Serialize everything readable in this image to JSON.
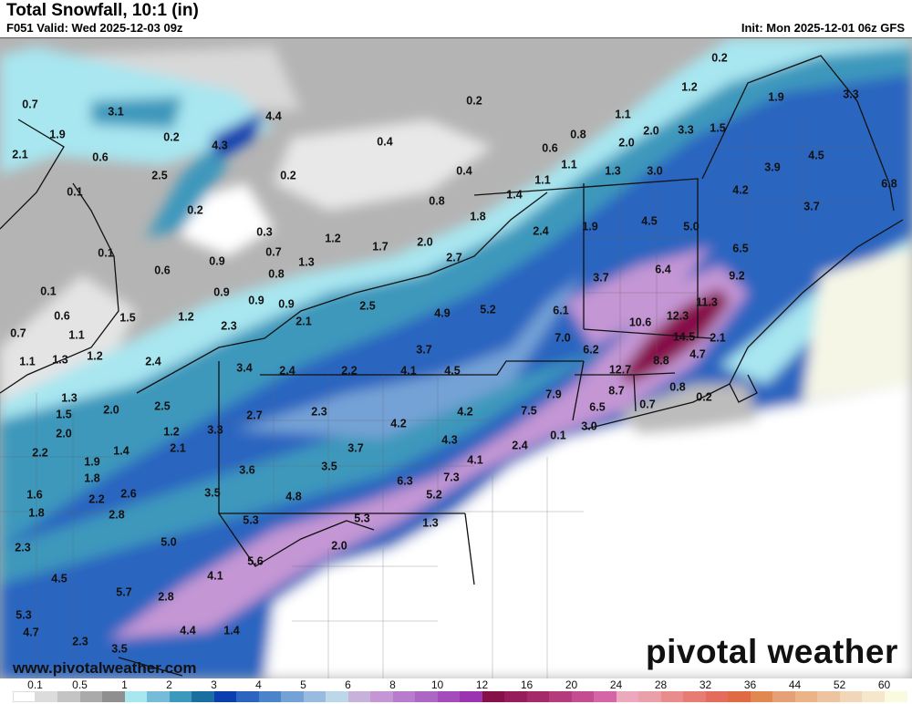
{
  "header": {
    "title": "Total Snowfall, 10:1 (in)",
    "valid": "F051 Valid: Wed 2025-12-03 09z",
    "init": "Init: Mon 2025-12-01 06z GFS"
  },
  "map": {
    "labels": [
      "0.2",
      "1.2",
      "1.9",
      "3.3",
      "0.7",
      "3.1",
      "4.4",
      "0.2",
      "1.1",
      "2.0",
      "3.3",
      "1.5",
      "0.8",
      "1.9",
      "0.2",
      "4.3",
      "0.4",
      "2.0",
      "4.5",
      "2.1",
      "0.6",
      "0.6",
      "1.1",
      "1.3",
      "3.0",
      "3.9",
      "0.4",
      "2.5",
      "0.2",
      "1.1",
      "4.2",
      "6.8",
      "0.1",
      "0.8",
      "1.4",
      "0.2",
      "3.7",
      "1.8",
      "1.9",
      "4.5",
      "5.0",
      "0.3",
      "2.4",
      "1.2",
      "1.7",
      "2.0",
      "0.1",
      "0.7",
      "2.7",
      "6.5",
      "0.9",
      "1.3",
      "0.6",
      "0.8",
      "6.4",
      "9.2",
      "0.1",
      "0.9",
      "0.9",
      "0.9",
      "3.7",
      "2.5",
      "11.3",
      "0.6",
      "1.5",
      "1.2",
      "2.3",
      "2.1",
      "4.9",
      "5.2",
      "6.1",
      "12.3",
      "10.6",
      "1.1",
      "0.7",
      "7.0",
      "14.5",
      "2.1",
      "3.7",
      "6.2",
      "4.7",
      "1.1",
      "1.3",
      "1.2",
      "2.4",
      "8.8",
      "3.4",
      "2.4",
      "2.2",
      "4.1",
      "4.5",
      "12.7",
      "0.8",
      "0.2",
      "1.3",
      "7.9",
      "8.7",
      "0.7",
      "2.5",
      "2.0",
      "6.5",
      "1.5",
      "7.5",
      "2.3",
      "2.7",
      "4.2",
      "4.2",
      "3.0",
      "3.3",
      "1.2",
      "2.0",
      "0.1",
      "4.3",
      "2.4",
      "1.4",
      "2.1",
      "3.7",
      "2.2",
      "1.9",
      "4.1",
      "3.5",
      "3.6",
      "6.3",
      "7.3",
      "1.8",
      "3.5",
      "1.6",
      "2.2",
      "2.6",
      "4.8",
      "5.2",
      "1.8",
      "2.8",
      "5.3",
      "5.3",
      "1.3",
      "5.0",
      "2.0",
      "2.3",
      "5.6",
      "4.5",
      "4.1",
      "5.7",
      "2.8",
      "5.3",
      "4.7",
      "4.4",
      "1.4",
      "2.3",
      "3.5"
    ],
    "website": "www.pivotalweather.com",
    "logo": "pivotal weather"
  },
  "legend": {
    "ticks": [
      "0.1",
      "0.5",
      "1",
      "2",
      "3",
      "4",
      "5",
      "6",
      "8",
      "10",
      "12",
      "16",
      "20",
      "24",
      "28",
      "32",
      "36",
      "44",
      "52",
      "60"
    ],
    "colors": [
      "#ffffff",
      "#dcdcdc",
      "#c4c4c4",
      "#aaaaaa",
      "#8f8f8f",
      "#a8e6f0",
      "#74bcd8",
      "#3c98bc",
      "#1a6fa0",
      "#0b3fb0",
      "#2b65c0",
      "#4c84cc",
      "#75a2d6",
      "#98bce0",
      "#bcd8e8",
      "#c8b2dc",
      "#c496d4",
      "#b77ccc",
      "#ac66c4",
      "#a34cba",
      "#9a34b0",
      "#861048",
      "#961c5c",
      "#a42a6a",
      "#b43c7c",
      "#c44c90",
      "#d466a8",
      "#eca8bc",
      "#eaa0a8",
      "#e88c8c",
      "#e67c74",
      "#e46c5c",
      "#e06a44",
      "#e08850",
      "#e6a078",
      "#eab488",
      "#eec4a0",
      "#f2d6b8",
      "#f6e6cc",
      "#fafade"
    ]
  }
}
